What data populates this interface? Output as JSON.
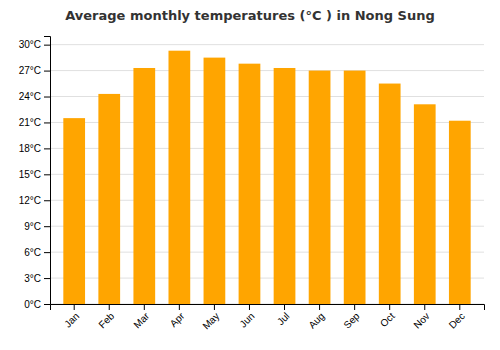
{
  "chart_data": {
    "type": "bar",
    "title": "Average monthly temperatures (°C ) in Nong Sung",
    "categories": [
      "Jan",
      "Feb",
      "Mar",
      "Apr",
      "May",
      "Jun",
      "Jul",
      "Aug",
      "Sep",
      "Oct",
      "Nov",
      "Dec"
    ],
    "values": [
      21.5,
      24.3,
      27.3,
      29.3,
      28.5,
      27.8,
      27.3,
      27.0,
      27.0,
      25.5,
      23.1,
      21.2
    ],
    "color": "#FFA500",
    "ylim": [
      0,
      31
    ],
    "yticks": [
      {
        "value": 0,
        "label": "0°C"
      },
      {
        "value": 3,
        "label": "3°C"
      },
      {
        "value": 6,
        "label": "6°C"
      },
      {
        "value": 9,
        "label": "9°C"
      },
      {
        "value": 12,
        "label": "12°C"
      },
      {
        "value": 15,
        "label": "15°C"
      },
      {
        "value": 18,
        "label": "18°C"
      },
      {
        "value": 21,
        "label": "21°C"
      },
      {
        "value": 24,
        "label": "24°C"
      },
      {
        "value": 27,
        "label": "27°C"
      },
      {
        "value": 30,
        "label": "30°C"
      }
    ],
    "grid": true
  }
}
